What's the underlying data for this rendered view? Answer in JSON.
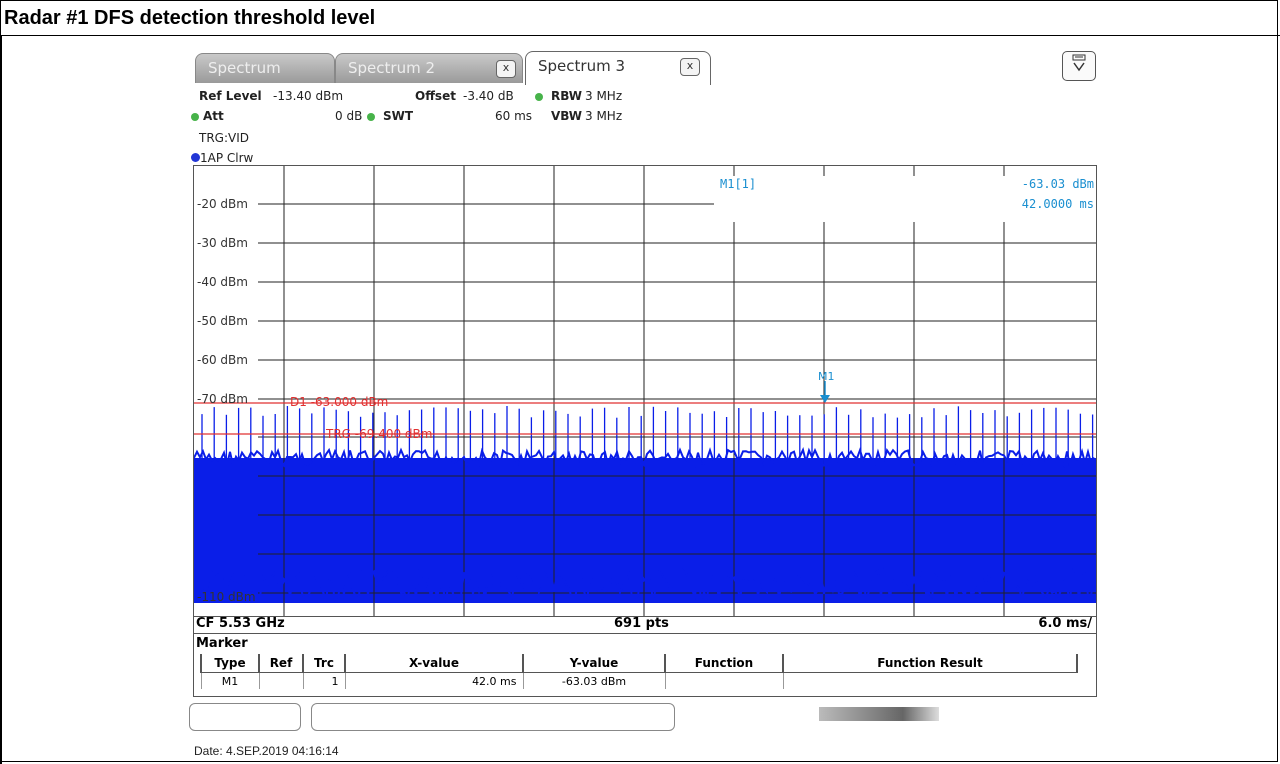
{
  "document": {
    "title": "Radar #1 DFS detection threshold level",
    "date": "Date: 4.SEP.2019  04:16:14"
  },
  "tabs": [
    {
      "label": "Spectrum",
      "active": false
    },
    {
      "label": "Spectrum 2",
      "active": false
    },
    {
      "label": "Spectrum 3",
      "active": true
    }
  ],
  "tab_close": "x",
  "settings": {
    "ref_level_label": "Ref Level",
    "ref_level_value": "-13.40 dBm",
    "offset_label": "Offset",
    "offset_value": "-3.40 dB",
    "rbw_label": "RBW",
    "rbw_value": "3 MHz",
    "att_label": "Att",
    "att_value": "0 dB",
    "swt_label": "SWT",
    "swt_value": "60 ms",
    "vbw_label": "VBW",
    "vbw_value": "3 MHz",
    "trigger": "TRG:VID"
  },
  "trace_label": "1AP Clrw",
  "plot": {
    "y_ticks": [
      "-20 dBm",
      "-30 dBm",
      "-40 dBm",
      "-50 dBm",
      "-60 dBm",
      "-70 dBm",
      "-110 dBm"
    ],
    "display_line": "D1  -63.000 dBm",
    "trigger_line": "TRG  -69.400 dBm",
    "marker_name": "M1[1]",
    "marker_level": "-63.03 dBm",
    "marker_time": "42.0000 ms",
    "marker_tag": "M1"
  },
  "footer": {
    "center_freq": "CF 5.53 GHz",
    "points": "691 pts",
    "sweep": "6.0 ms/"
  },
  "marker_table": {
    "title": "Marker",
    "headers": [
      "Type",
      "Ref",
      "Trc",
      "X-value",
      "Y-value",
      "Function",
      "Function Result"
    ],
    "row": [
      "M1",
      "",
      "1",
      "42.0 ms",
      "-63.03 dBm",
      "",
      ""
    ]
  },
  "colors": {
    "trace": "#0a1ee8",
    "limit": "#e03030",
    "marker": "#1a8fd0",
    "status_green": "#47b34a"
  }
}
